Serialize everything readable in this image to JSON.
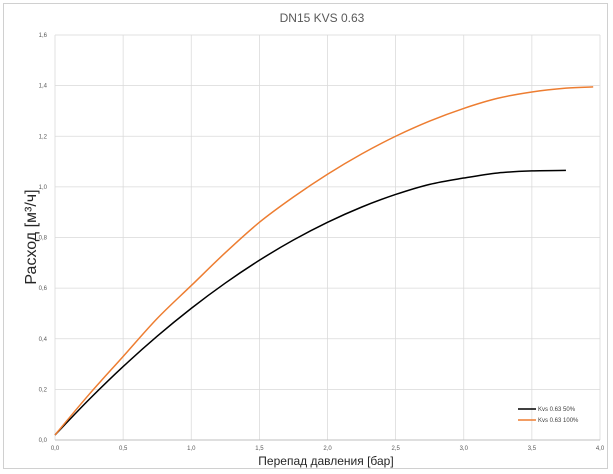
{
  "chart_data": {
    "type": "line",
    "title": "DN15 KVS 0.63",
    "xlabel": "Перепад давления [бар]",
    "ylabel": "Расход  [м³/ч]",
    "xlim": [
      0,
      4.0
    ],
    "ylim": [
      0,
      1.6
    ],
    "x_ticks": [
      "0,0",
      "0,5",
      "1,0",
      "1,5",
      "2,0",
      "2,5",
      "3,0",
      "3,5",
      "4,0"
    ],
    "y_ticks": [
      "0,0",
      "0,2",
      "0,4",
      "0,6",
      "0,8",
      "1,0",
      "1,2",
      "1,4",
      "1,6"
    ],
    "grid": true,
    "legend_position": "bottom-right",
    "series": [
      {
        "name": "Kvs 0.63 50%",
        "color": "#000000",
        "x": [
          0.0,
          0.25,
          0.5,
          0.75,
          1.0,
          1.25,
          1.5,
          1.75,
          2.0,
          2.25,
          2.5,
          2.75,
          3.0,
          3.25,
          3.5,
          3.75
        ],
        "y": [
          0.02,
          0.16,
          0.29,
          0.41,
          0.52,
          0.62,
          0.71,
          0.79,
          0.86,
          0.92,
          0.97,
          1.01,
          1.035,
          1.055,
          1.063,
          1.065
        ]
      },
      {
        "name": "Kvs 0.63 100%",
        "color": "#ED7D31",
        "x": [
          0.0,
          0.25,
          0.5,
          0.75,
          1.0,
          1.25,
          1.5,
          1.75,
          2.0,
          2.25,
          2.5,
          2.75,
          3.0,
          3.25,
          3.5,
          3.75,
          3.95
        ],
        "y": [
          0.02,
          0.18,
          0.33,
          0.48,
          0.61,
          0.74,
          0.86,
          0.96,
          1.05,
          1.13,
          1.2,
          1.26,
          1.31,
          1.35,
          1.375,
          1.39,
          1.395
        ]
      }
    ]
  }
}
